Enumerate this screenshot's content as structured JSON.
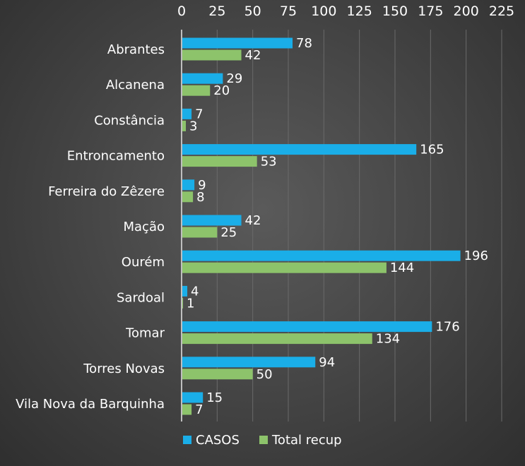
{
  "chart_data": {
    "type": "bar",
    "orientation": "horizontal",
    "categories": [
      "Abrantes",
      "Alcanena",
      "Constância",
      "Entroncamento",
      "Ferreira do Zêzere",
      "Mação",
      "Ourém",
      "Sardoal",
      "Tomar",
      "Torres Novas",
      "Vila Nova da Barquinha"
    ],
    "series": [
      {
        "name": "CASOS",
        "color": "#1aaee8",
        "values": [
          78,
          29,
          7,
          165,
          9,
          42,
          196,
          4,
          176,
          94,
          15
        ]
      },
      {
        "name": "Total recup",
        "color": "#8dc36b",
        "values": [
          42,
          20,
          3,
          53,
          8,
          25,
          144,
          1,
          134,
          50,
          7
        ]
      }
    ],
    "xticks": [
      0,
      25,
      50,
      75,
      100,
      125,
      150,
      175,
      200,
      225
    ],
    "xlim": [
      0,
      225
    ],
    "x_axis_position": "top",
    "grid": true,
    "legend_position": "bottom",
    "data_labels": true,
    "title": "",
    "xlabel": "",
    "ylabel": ""
  }
}
